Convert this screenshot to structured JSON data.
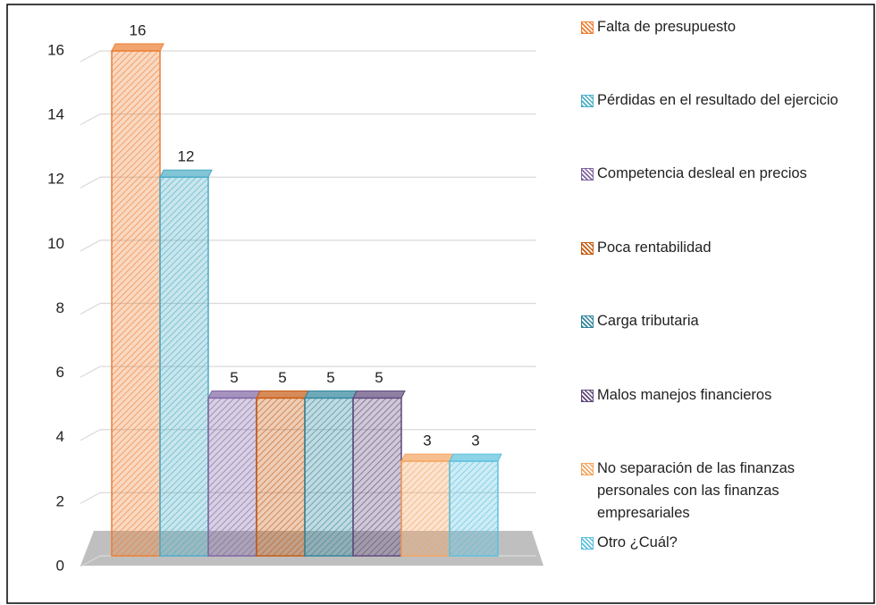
{
  "chart_data": {
    "type": "bar",
    "categories": [
      null
    ],
    "series": [
      {
        "name": "Falta de presupuesto",
        "color": "#ed7d31",
        "values": [
          16
        ]
      },
      {
        "name": "Pérdidas en el resultado del ejercicio",
        "color": "#4bacc6",
        "values": [
          12
        ]
      },
      {
        "name": "Competencia desleal en precios",
        "color": "#8064a2",
        "values": [
          5
        ]
      },
      {
        "name": "Poca rentabilidad",
        "color": "#c55a11",
        "values": [
          5
        ]
      },
      {
        "name": "Carga tributaria",
        "color": "#31859c",
        "values": [
          5
        ]
      },
      {
        "name": "Malos manejos financieros",
        "color": "#5f497a",
        "values": [
          5
        ]
      },
      {
        "name": "No separación de las finanzas personales con las finanzas empresariales",
        "color": "#f4a460",
        "values": [
          3
        ]
      },
      {
        "name": "Otro ¿Cuál?",
        "color": "#5bc0de",
        "values": [
          3
        ]
      }
    ],
    "ylim": [
      0,
      16
    ],
    "yticks": [
      0,
      2,
      4,
      6,
      8,
      10,
      12,
      14,
      16
    ],
    "grid": true
  }
}
